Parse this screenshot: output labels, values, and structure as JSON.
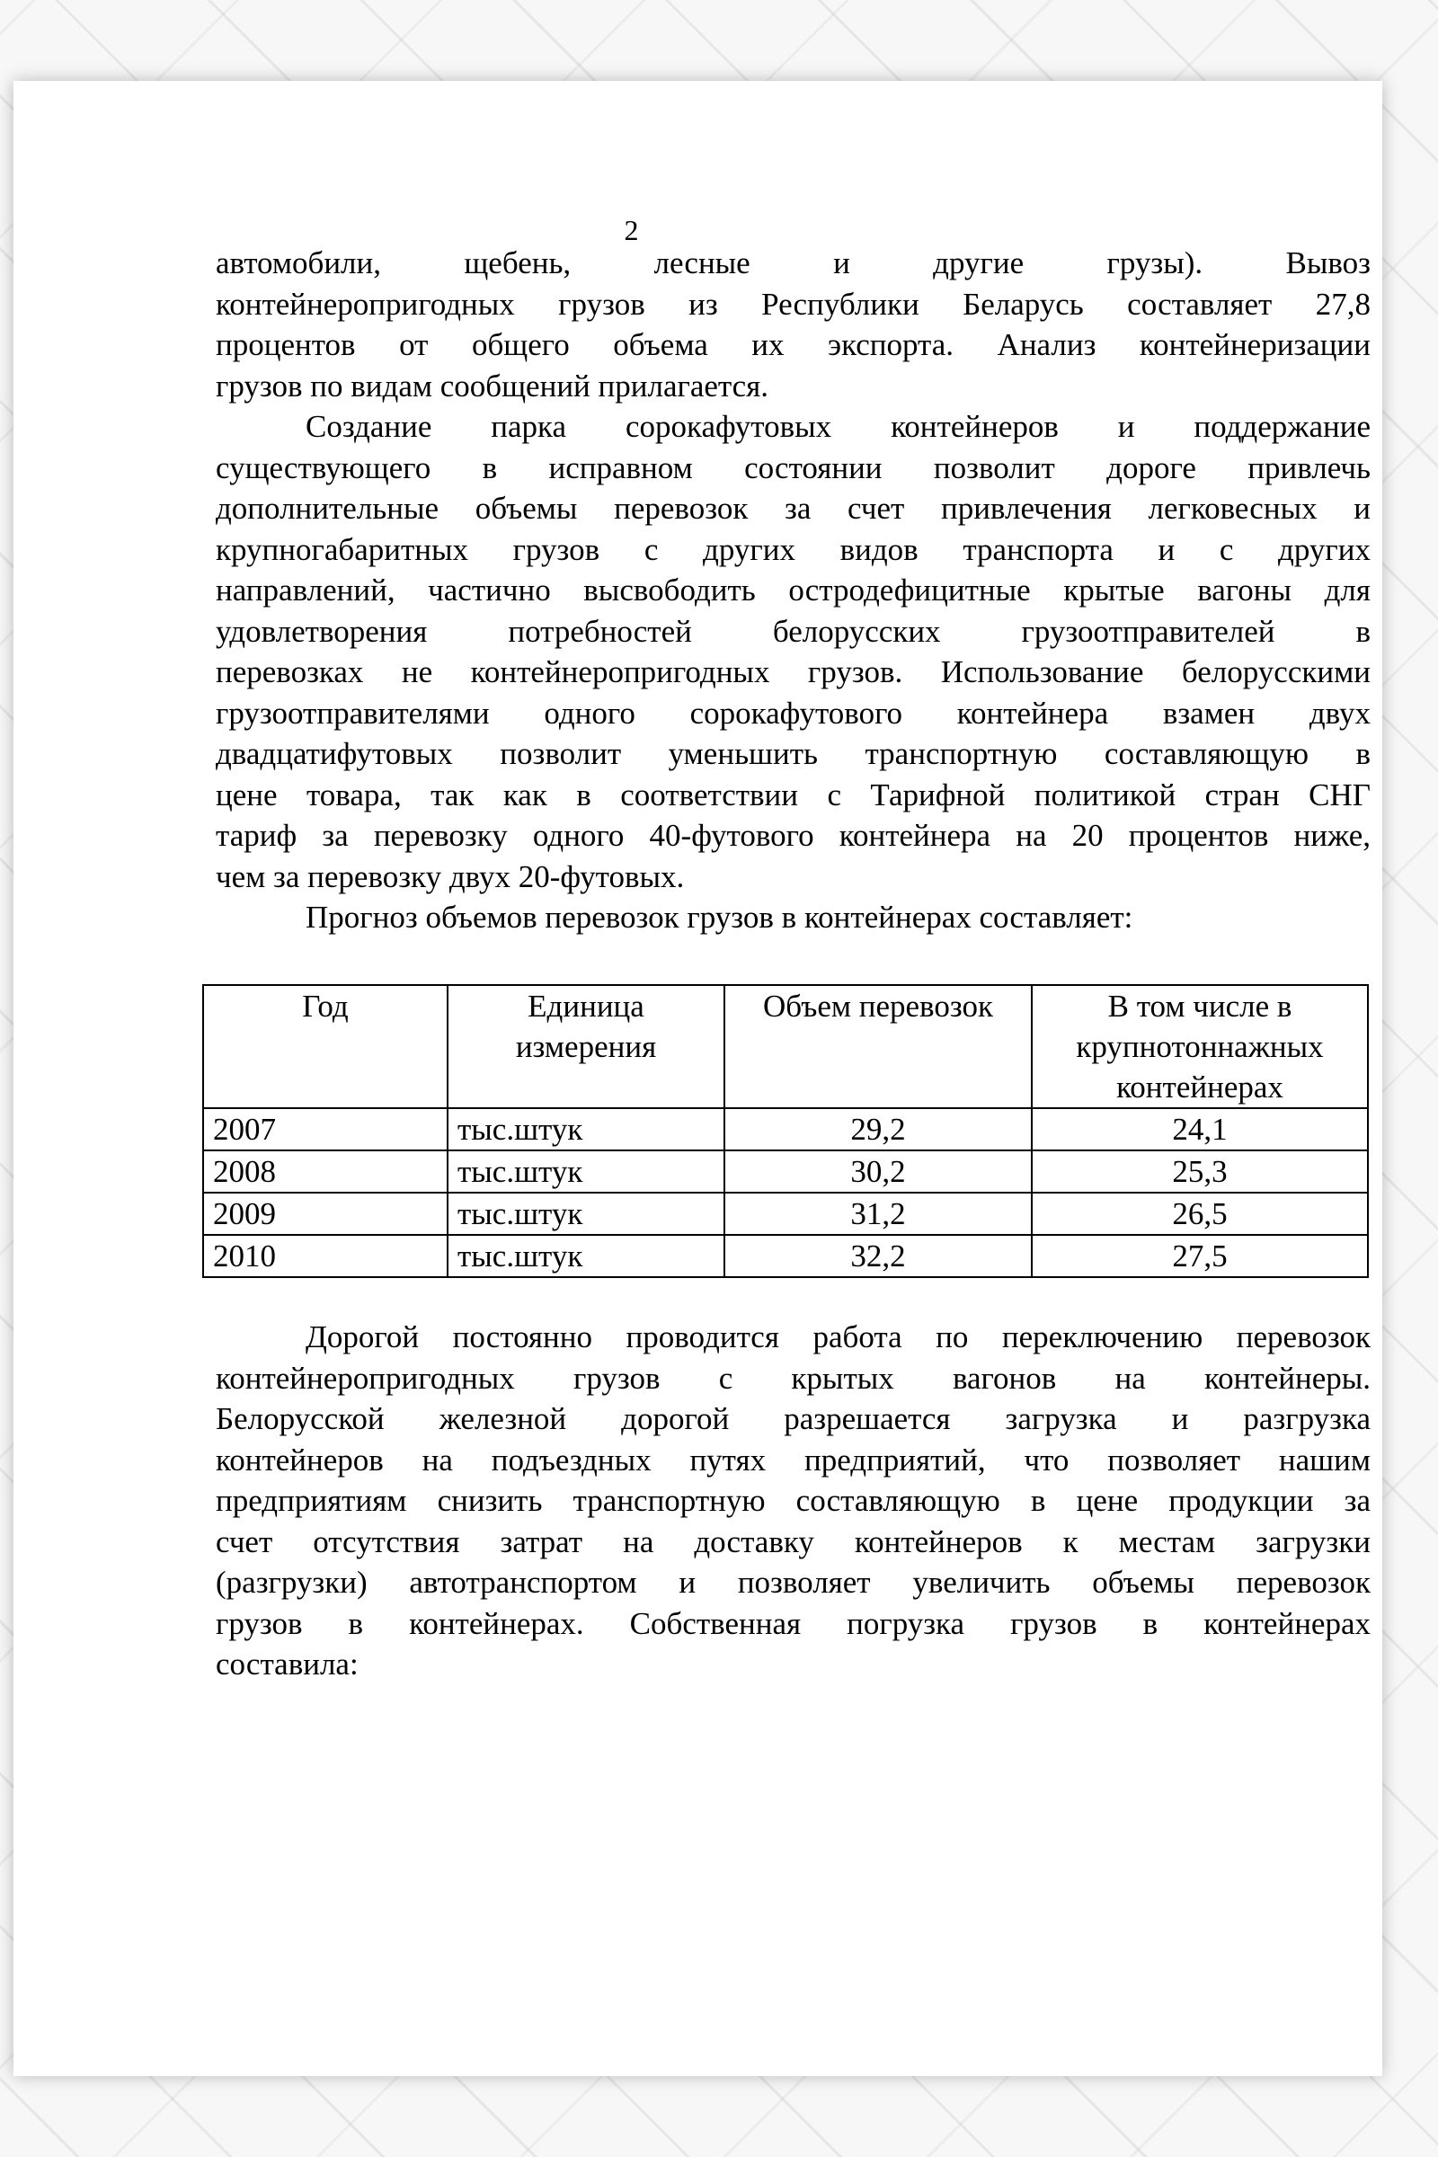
{
  "page_number": "2",
  "paragraph1": [
    "автомобили, щебень, лесные и другие грузы). Вывоз",
    "контейнеропригодных грузов из Республики Беларусь составляет 27,8",
    "процентов от общего объема их экспорта.  Анализ контейнеризации",
    "грузов по видам сообщений прилагается."
  ],
  "paragraph2": [
    "Создание парка сорокафутовых контейнеров и поддержание",
    "существующего в исправном состоянии позволит дороге привлечь",
    "дополнительные объемы перевозок за счет привлечения легковесных и",
    "крупногабаритных грузов с других видов транспорта и с других",
    "направлений, частично высвободить остродефицитные крытые вагоны для",
    "удовлетворения потребностей белорусских грузоотправителей в",
    "перевозках не контейнеропригодных грузов. Использование белорусскими",
    "грузоотправителями одного сорокафутового контейнера взамен двух",
    "двадцатифутовых позволит уменьшить транспортную составляющую в",
    "цене товара, так как в соответствии с Тарифной политикой стран СНГ",
    "тариф за перевозку одного 40-футового контейнера на 20 процентов ниже,",
    "чем за перевозку  двух 20-футовых."
  ],
  "table_intro": "Прогноз объемов перевозок грузов в контейнерах составляет:",
  "table": {
    "headers": [
      "Год",
      "Единица измерения",
      "Объем перевозок",
      "В том числе в крупнотоннажных контейнерах"
    ],
    "rows": [
      [
        "2007",
        "тыс.штук",
        "29,2",
        "24,1"
      ],
      [
        "2008",
        "тыс.штук",
        "30,2",
        "25,3"
      ],
      [
        "2009",
        "тыс.штук",
        "31,2",
        "26,5"
      ],
      [
        "2010",
        "тыс.штук",
        "32,2",
        "27,5"
      ]
    ]
  },
  "paragraph3": [
    "Дорогой постоянно проводится работа по переключению перевозок",
    "контейнеропригодных грузов с крытых вагонов на контейнеры.",
    "Белорусской железной дорогой разрешается загрузка и разгрузка",
    "контейнеров на подъездных путях предприятий, что позволяет нашим",
    "предприятиям снизить транспортную составляющую в цене продукции за",
    "счет отсутствия затрат на доставку контейнеров к местам загрузки",
    "(разгрузки) автотранспортом и позволяет увеличить объемы перевозок",
    "грузов в контейнерах. Собственная погрузка грузов в контейнерах",
    "составила:"
  ]
}
